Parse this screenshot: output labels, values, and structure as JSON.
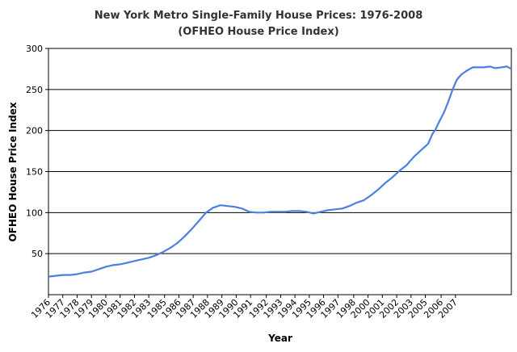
{
  "chart_data": {
    "type": "line",
    "title": "New York Metro Single-Family House Prices: 1976-2008",
    "subtitle": "(OFHEO House Price Index)",
    "xlabel": "Year",
    "ylabel": "OFHEO House Price Index",
    "ylim": [
      0,
      300
    ],
    "xlim": [
      1976,
      2008.3
    ],
    "yticks": [
      "50",
      "100",
      "150",
      "200",
      "250",
      "300"
    ],
    "xticks": [
      {
        "v": 1976.0,
        "label": "1976"
      },
      {
        "v": 1977.0,
        "label": "1977"
      },
      {
        "v": 1978.0,
        "label": "1978"
      },
      {
        "v": 1979.0,
        "label": "1979"
      },
      {
        "v": 1980.0,
        "label": "1980"
      },
      {
        "v": 1981.0,
        "label": "1981"
      },
      {
        "v": 1982.0,
        "label": "1982"
      },
      {
        "v": 1983.0,
        "label": "1983"
      },
      {
        "v": 1984.1,
        "label": "1985"
      },
      {
        "v": 1985.1,
        "label": "1986"
      },
      {
        "v": 1986.1,
        "label": "1987"
      },
      {
        "v": 1987.1,
        "label": "1988"
      },
      {
        "v": 1988.1,
        "label": "1989"
      },
      {
        "v": 1989.1,
        "label": "1990"
      },
      {
        "v": 1990.1,
        "label": "1991"
      },
      {
        "v": 1991.2,
        "label": "1992"
      },
      {
        "v": 1992.2,
        "label": "1993"
      },
      {
        "v": 1993.2,
        "label": "1994"
      },
      {
        "v": 1994.2,
        "label": "1995"
      },
      {
        "v": 1995.2,
        "label": "1996"
      },
      {
        "v": 1996.2,
        "label": "1997"
      },
      {
        "v": 1997.3,
        "label": "1998"
      },
      {
        "v": 1998.3,
        "label": "2000"
      },
      {
        "v": 1999.3,
        "label": "2001"
      },
      {
        "v": 2000.3,
        "label": "2002"
      },
      {
        "v": 2001.3,
        "label": "2003"
      },
      {
        "v": 2002.3,
        "label": "2005"
      },
      {
        "v": 2003.4,
        "label": "2006"
      },
      {
        "v": 2004.4,
        "label": "2007"
      }
    ],
    "grid": true,
    "line_color": "#4a80e0",
    "series": [
      {
        "values": [
          [
            1976.0,
            22
          ],
          [
            1976.5,
            23
          ],
          [
            1977.0,
            24
          ],
          [
            1977.5,
            24
          ],
          [
            1978.0,
            25
          ],
          [
            1978.5,
            27
          ],
          [
            1979.0,
            28
          ],
          [
            1979.5,
            31
          ],
          [
            1980.0,
            34
          ],
          [
            1980.5,
            36
          ],
          [
            1981.0,
            37
          ],
          [
            1981.5,
            39
          ],
          [
            1982.0,
            41
          ],
          [
            1982.5,
            43
          ],
          [
            1983.0,
            45
          ],
          [
            1983.5,
            48
          ],
          [
            1984.0,
            52
          ],
          [
            1984.5,
            57
          ],
          [
            1985.0,
            63
          ],
          [
            1985.5,
            71
          ],
          [
            1986.0,
            80
          ],
          [
            1986.5,
            90
          ],
          [
            1987.0,
            100
          ],
          [
            1987.5,
            106
          ],
          [
            1988.0,
            109
          ],
          [
            1988.5,
            108
          ],
          [
            1989.0,
            107
          ],
          [
            1989.5,
            105
          ],
          [
            1990.0,
            101
          ],
          [
            1990.5,
            100
          ],
          [
            1991.0,
            100
          ],
          [
            1991.5,
            101
          ],
          [
            1992.0,
            101
          ],
          [
            1992.5,
            101
          ],
          [
            1993.0,
            102
          ],
          [
            1993.5,
            102
          ],
          [
            1994.0,
            101
          ],
          [
            1994.5,
            99
          ],
          [
            1995.0,
            101
          ],
          [
            1995.5,
            103
          ],
          [
            1996.0,
            104
          ],
          [
            1996.5,
            105
          ],
          [
            1997.0,
            108
          ],
          [
            1997.5,
            112
          ],
          [
            1998.0,
            115
          ],
          [
            1998.5,
            121
          ],
          [
            1999.0,
            128
          ],
          [
            1999.5,
            136
          ],
          [
            2000.0,
            143
          ],
          [
            2000.5,
            151
          ],
          [
            2001.0,
            158
          ],
          [
            2001.5,
            168
          ],
          [
            2002.0,
            176
          ],
          [
            2002.5,
            184
          ],
          [
            2002.8,
            196
          ],
          [
            2003.0,
            201
          ],
          [
            2003.3,
            212
          ],
          [
            2003.6,
            222
          ],
          [
            2003.9,
            235
          ],
          [
            2004.2,
            250
          ],
          [
            2004.5,
            262
          ],
          [
            2004.8,
            268
          ],
          [
            2005.2,
            273
          ],
          [
            2005.6,
            277
          ],
          [
            2006.0,
            277
          ],
          [
            2006.4,
            277
          ],
          [
            2006.8,
            278
          ],
          [
            2007.2,
            276
          ],
          [
            2007.6,
            277
          ],
          [
            2008.0,
            278
          ],
          [
            2008.3,
            275
          ]
        ]
      }
    ]
  }
}
